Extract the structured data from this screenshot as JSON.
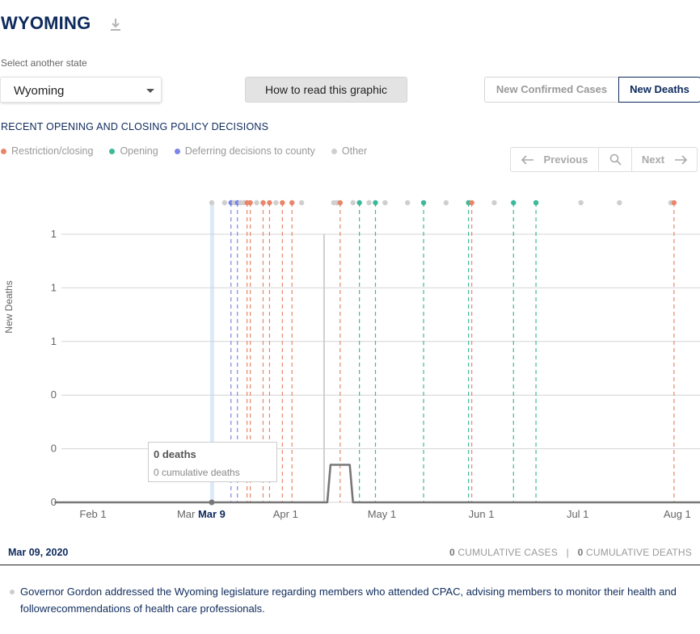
{
  "header": {
    "title": "WYOMING"
  },
  "state_select": {
    "label": "Select another state",
    "value": "Wyoming"
  },
  "buttons": {
    "howto": "How to read this graphic"
  },
  "metric_toggle": {
    "confirmed": "New Confirmed Cases",
    "deaths": "New Deaths",
    "active": "New Deaths"
  },
  "section_title": "RECENT OPENING AND CLOSING POLICY DECISIONS",
  "legend": [
    {
      "label": "Restriction/closing",
      "color": "#e8866a"
    },
    {
      "label": "Opening",
      "color": "#3cb99a"
    },
    {
      "label": "Deferring decisions to county",
      "color": "#7b86e6"
    },
    {
      "label": "Other",
      "color": "#cfcfcf"
    }
  ],
  "pager": {
    "previous": "Previous",
    "next": "Next"
  },
  "tooltip": {
    "deaths": "0 deaths",
    "cumulative": "0 cumulative deaths"
  },
  "footer": {
    "date": "Mar 09, 2020",
    "cases_count": "0",
    "cases_label": "CUMULATIVE CASES",
    "deaths_count": "0",
    "deaths_label": "CUMULATIVE DEATHS",
    "separator": "|"
  },
  "note": "Governor Gordon addressed the Wyoming legislature regarding members who attended CPAC, advising members to monitor their health and followrecommendations of health care professionals.",
  "chart_data": {
    "type": "line",
    "ylabel": "New Deaths",
    "x_ticks": [
      "Feb 1",
      "Mar",
      "Apr 1",
      "May 1",
      "Jun 1",
      "Jul 1",
      "Aug 1"
    ],
    "x_tick_days": [
      0,
      29,
      60,
      90,
      121,
      151,
      182
    ],
    "selected_label": "Mar 9",
    "selected_day": 37,
    "y_tick_labels": [
      "0",
      "0",
      "0",
      "1",
      "1",
      "1"
    ],
    "y_tick_values": [
      0,
      0.2,
      0.4,
      0.6,
      0.8,
      1.0
    ],
    "ylim": [
      0,
      1.0
    ],
    "hover_day": 72,
    "series": [
      {
        "values_x": [
          -12,
          73,
          74,
          80,
          81,
          196
        ],
        "values_y": [
          0,
          0,
          0.14,
          0.14,
          0,
          0
        ]
      }
    ],
    "policy_events": [
      {
        "day": 37,
        "type": "other"
      },
      {
        "day": 41,
        "type": "other"
      },
      {
        "day": 43,
        "type": "county"
      },
      {
        "day": 44,
        "type": "other"
      },
      {
        "day": 45,
        "type": "county"
      },
      {
        "day": 46,
        "type": "other"
      },
      {
        "day": 47,
        "type": "other"
      },
      {
        "day": 48,
        "type": "restriction"
      },
      {
        "day": 49,
        "type": "restriction"
      },
      {
        "day": 51,
        "type": "other"
      },
      {
        "day": 53,
        "type": "restriction"
      },
      {
        "day": 55,
        "type": "restriction"
      },
      {
        "day": 57,
        "type": "other"
      },
      {
        "day": 59,
        "type": "restriction"
      },
      {
        "day": 62,
        "type": "restriction"
      },
      {
        "day": 65,
        "type": "other"
      },
      {
        "day": 75,
        "type": "other"
      },
      {
        "day": 76,
        "type": "other"
      },
      {
        "day": 77,
        "type": "restriction"
      },
      {
        "day": 81,
        "type": "other"
      },
      {
        "day": 83,
        "type": "opening"
      },
      {
        "day": 86,
        "type": "other"
      },
      {
        "day": 88,
        "type": "opening"
      },
      {
        "day": 91,
        "type": "other"
      },
      {
        "day": 98,
        "type": "other"
      },
      {
        "day": 103,
        "type": "opening"
      },
      {
        "day": 110,
        "type": "other"
      },
      {
        "day": 117,
        "type": "opening"
      },
      {
        "day": 118,
        "type": "restriction"
      },
      {
        "day": 125,
        "type": "other"
      },
      {
        "day": 131,
        "type": "opening"
      },
      {
        "day": 138,
        "type": "opening"
      },
      {
        "day": 152,
        "type": "other"
      },
      {
        "day": 164,
        "type": "other"
      },
      {
        "day": 180,
        "type": "other"
      },
      {
        "day": 181,
        "type": "restriction"
      }
    ]
  }
}
